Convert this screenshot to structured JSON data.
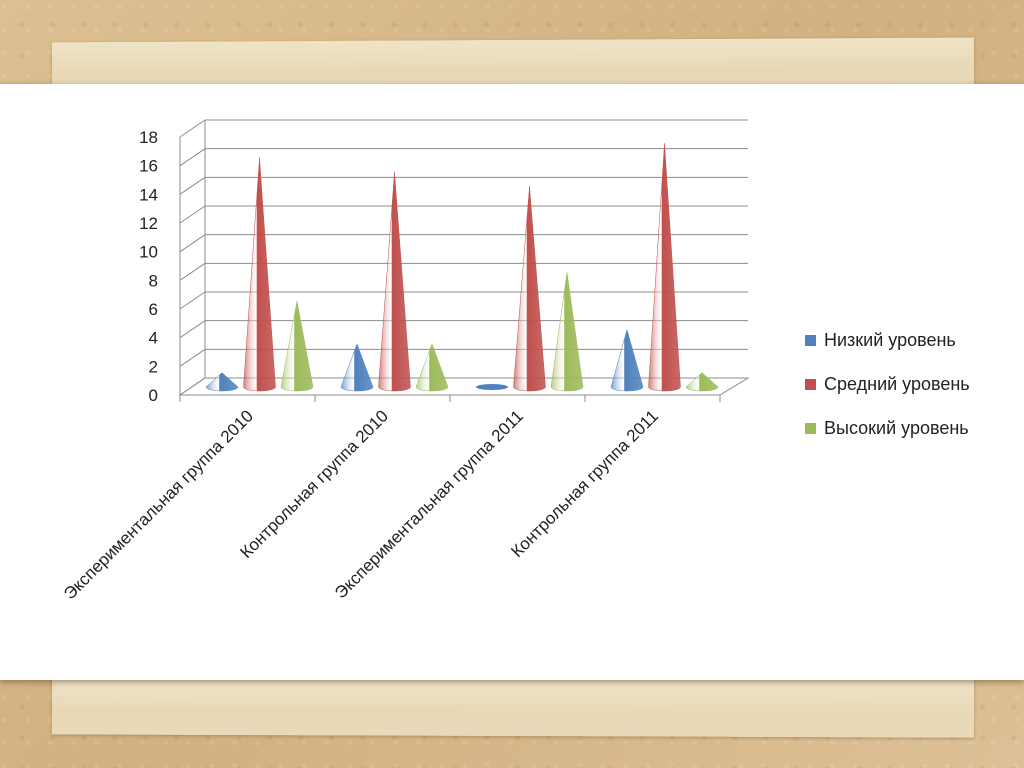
{
  "chart_data": {
    "type": "bar",
    "title": "",
    "xlabel": "",
    "ylabel": "",
    "ylim": [
      0,
      18
    ],
    "yticks": [
      0,
      2,
      4,
      6,
      8,
      10,
      12,
      14,
      16,
      18
    ],
    "grid": true,
    "legend_position": "right",
    "categories": [
      "Экспериментальная группа 2010",
      "Контрольная группа 2010",
      "Экспериментальная группа 2011",
      "Контрольная группа 2011"
    ],
    "series": [
      {
        "name": "Низкий уровень",
        "values": [
          1,
          3,
          0,
          4
        ],
        "color": "#4f81bd"
      },
      {
        "name": "Средний уровень",
        "values": [
          16,
          15,
          14,
          17
        ],
        "color": "#c0504d"
      },
      {
        "name": "Высокий уровень",
        "values": [
          6,
          3,
          8,
          1
        ],
        "color": "#9bbb59"
      }
    ]
  }
}
